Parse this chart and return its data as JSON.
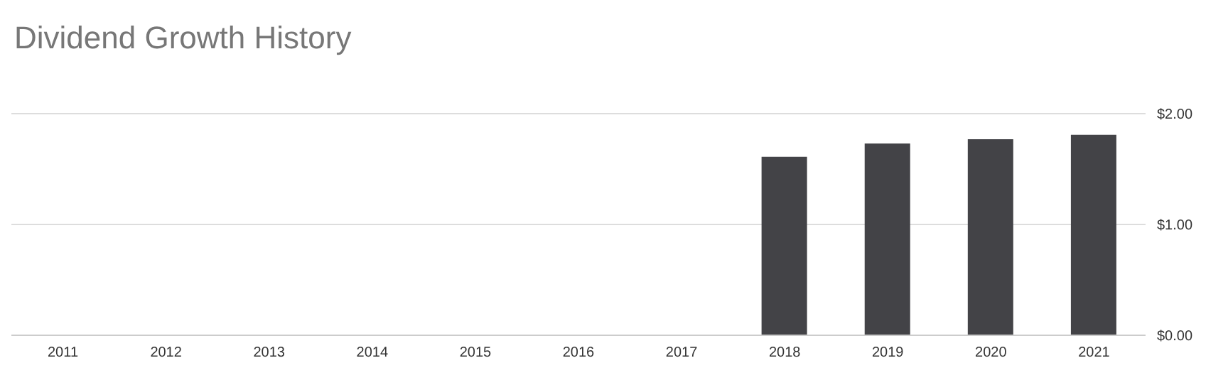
{
  "chart_data": {
    "type": "bar",
    "title": "Dividend Growth History",
    "categories": [
      "2011",
      "2012",
      "2013",
      "2014",
      "2015",
      "2016",
      "2017",
      "2018",
      "2019",
      "2020",
      "2021"
    ],
    "values": [
      null,
      null,
      null,
      null,
      null,
      null,
      null,
      1.61,
      1.73,
      1.77,
      1.81
    ],
    "color": "#434347",
    "ylim": [
      0,
      2
    ],
    "yticks": [
      {
        "value": 0,
        "label": "$0.00"
      },
      {
        "value": 1,
        "label": "$1.00"
      },
      {
        "value": 2,
        "label": "$2.00"
      }
    ],
    "grid": "y"
  }
}
